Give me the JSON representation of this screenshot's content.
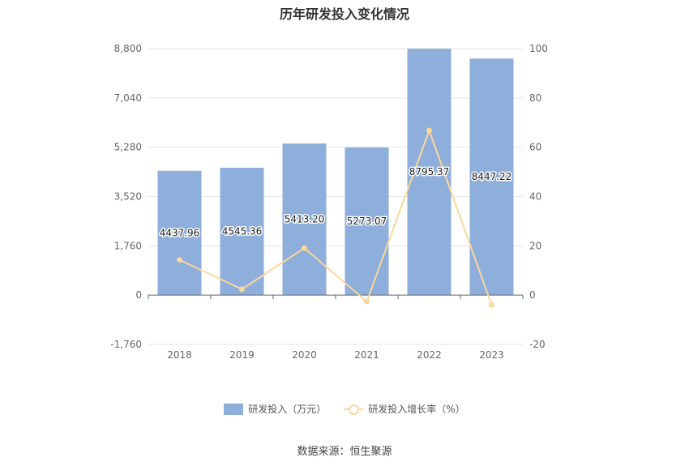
{
  "chart_data": {
    "type": "bar",
    "title": "历年研发投入变化情况",
    "categories": [
      "2018",
      "2019",
      "2020",
      "2021",
      "2022",
      "2023"
    ],
    "series": [
      {
        "name": "研发投入（万元）",
        "type": "bar",
        "axis": "left",
        "values": [
          4437.96,
          4545.36,
          5413.2,
          5273.07,
          8795.37,
          8447.22
        ],
        "labels": [
          "4437.96",
          "4545.36",
          "5413.20",
          "5273.07",
          "8795.37",
          "8447.22"
        ]
      },
      {
        "name": "研发投入增长率（%）",
        "type": "line",
        "axis": "right",
        "values": [
          14.3,
          2.4,
          19.1,
          -2.6,
          66.8,
          -4.0
        ]
      }
    ],
    "left_axis": {
      "ylim": [
        -1760,
        8800
      ],
      "ticks": [
        8800,
        7040,
        5280,
        3520,
        1760,
        0,
        -1760
      ],
      "tick_labels": [
        "8,800",
        "7,040",
        "5,280",
        "3,520",
        "1,760",
        "0",
        "-1,760"
      ]
    },
    "right_axis": {
      "ylim": [
        -20,
        100
      ],
      "ticks": [
        100,
        80,
        60,
        40,
        20,
        0,
        -20
      ],
      "tick_labels": [
        "100",
        "80",
        "60",
        "40",
        "20",
        "0",
        "-20"
      ]
    },
    "grid": true,
    "legend_position": "bottom",
    "colors": {
      "bar": "#8eaedb",
      "line": "#fbd89b",
      "grid": "#e6e6e6",
      "axis": "#666666"
    }
  },
  "source": "数据来源：恒生聚源"
}
